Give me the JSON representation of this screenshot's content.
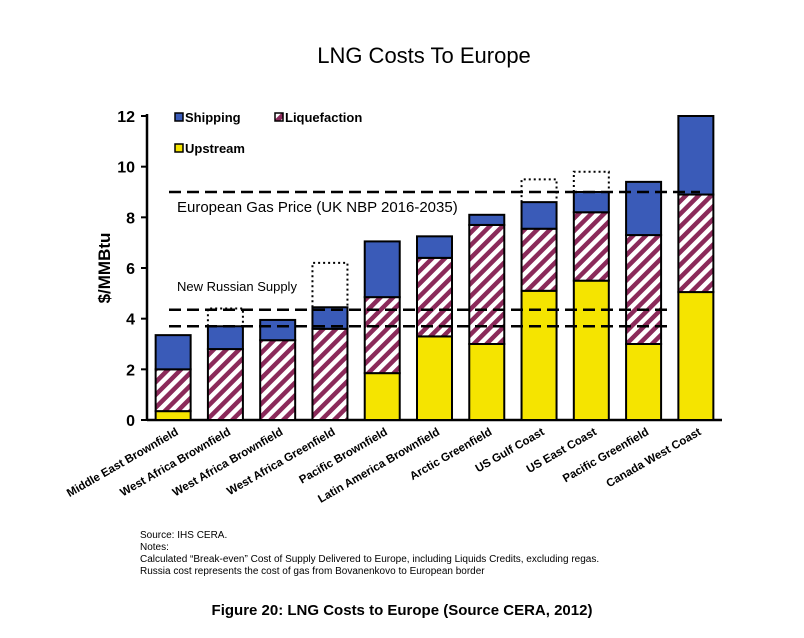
{
  "colors": {
    "shipping": "#3a5bb8",
    "liquefaction_stripe": "#8b2a5a",
    "upstream": "#f5e400",
    "outline": "#000000",
    "background": "#ffffff"
  },
  "chart_data": {
    "type": "bar",
    "stacked": true,
    "title": "LNG Costs To Europe",
    "ylabel": "$/MMBtu",
    "xlabel": "",
    "ylim": [
      0,
      12
    ],
    "yticks": [
      0,
      2,
      4,
      6,
      8,
      10,
      12
    ],
    "grid": false,
    "legend_position": "top-left",
    "categories": [
      "Middle East Brownfield",
      "West Africa Brownfield",
      "West Africa Brownfield",
      "West Africa Greenfield",
      "Pacific Brownfield",
      "Latin America Brownfield",
      "Arctic Greenfield",
      "US Gulf Coast",
      "US East Coast",
      "Pacific Greenfield",
      "Canada West Coast"
    ],
    "series": [
      {
        "name": "Upstream",
        "color": "#f5e400",
        "pattern": "solid",
        "values": [
          0.35,
          0,
          0,
          0,
          1.85,
          3.3,
          3.0,
          5.1,
          5.5,
          3.0,
          5.05
        ]
      },
      {
        "name": "Liquefaction",
        "color": "#8b2a5a",
        "pattern": "hatched",
        "values": [
          1.65,
          2.8,
          3.15,
          3.6,
          3.0,
          3.1,
          4.7,
          2.45,
          2.7,
          4.3,
          3.85
        ]
      },
      {
        "name": "Shipping",
        "color": "#3a5bb8",
        "pattern": "solid",
        "values": [
          1.35,
          0.9,
          0.8,
          0.85,
          2.2,
          0.85,
          0.4,
          1.05,
          0.8,
          2.1,
          3.1
        ]
      }
    ],
    "dotted_outlines": [
      {
        "category_index": 1,
        "from": 3.7,
        "to": 4.4
      },
      {
        "category_index": 3,
        "from": 4.45,
        "to": 6.2
      },
      {
        "category_index": 7,
        "from": 8.6,
        "to": 9.5
      },
      {
        "category_index": 8,
        "from": 9.0,
        "to": 9.8
      }
    ],
    "reference_lines": [
      {
        "label": "European Gas Price  (UK NBP 2016-2035)",
        "values": [
          9.0
        ],
        "style": "dashed"
      },
      {
        "label": "New Russian Supply",
        "values": [
          4.35,
          3.7
        ],
        "style": "dashed"
      }
    ]
  },
  "notes": {
    "source": "Source: IHS CERA.",
    "heading": "Notes:",
    "line1": "Calculated “Break-even” Cost of Supply Delivered to Europe, including Liquids Credits, excluding regas.",
    "line2": "Russia cost represents the cost of gas from Bovanenkovo to European border"
  },
  "caption": "Figure 20: LNG Costs to Europe (Source CERA, 2012)"
}
